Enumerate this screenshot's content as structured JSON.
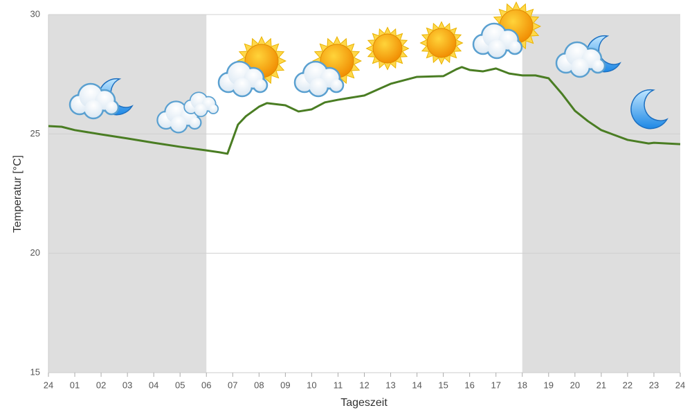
{
  "chart_data": {
    "type": "line",
    "x_label": "Tageszeit",
    "y_label": "Temperatur [°C]",
    "x": [
      0,
      0.5,
      1,
      2,
      3,
      4,
      5,
      6,
      6.5,
      6.8,
      7.2,
      7.5,
      8,
      8.3,
      9,
      9.5,
      10,
      10.5,
      11,
      12,
      13,
      14,
      15,
      15.5,
      15.7,
      16,
      16.5,
      17,
      17.5,
      18,
      18.5,
      19,
      19.5,
      20,
      20.5,
      21,
      22,
      22.8,
      23,
      24
    ],
    "series": [
      {
        "color": "#4a7d23",
        "values": [
          25.33,
          25.3,
          25.16,
          24.98,
          24.81,
          24.63,
          24.46,
          24.31,
          24.23,
          24.17,
          25.39,
          25.74,
          26.14,
          26.29,
          26.2,
          25.94,
          26.03,
          26.32,
          26.43,
          26.61,
          27.1,
          27.39,
          27.42,
          27.71,
          27.8,
          27.68,
          27.62,
          27.74,
          27.53,
          27.45,
          27.45,
          27.33,
          26.69,
          25.97,
          25.53,
          25.16,
          24.75,
          24.6,
          24.63,
          24.57
        ]
      }
    ],
    "xlim": [
      0,
      24
    ],
    "xticks": [
      {
        "value": 0,
        "label": "24"
      },
      {
        "value": 1,
        "label": "01"
      },
      {
        "value": 2,
        "label": "02"
      },
      {
        "value": 3,
        "label": "03"
      },
      {
        "value": 4,
        "label": "04"
      },
      {
        "value": 5,
        "label": "05"
      },
      {
        "value": 6,
        "label": "06"
      },
      {
        "value": 7,
        "label": "07"
      },
      {
        "value": 8,
        "label": "08"
      },
      {
        "value": 9,
        "label": "09"
      },
      10,
      11,
      12,
      13,
      14,
      15,
      16,
      17,
      18,
      19,
      20,
      21,
      22,
      23,
      24
    ],
    "ylim": [
      15,
      30
    ],
    "yticks": [
      15,
      20,
      25,
      30
    ],
    "grid": true,
    "shaded_ranges": [
      [
        0,
        6
      ],
      [
        18,
        24
      ]
    ],
    "shade_color": "#dedede"
  }
}
